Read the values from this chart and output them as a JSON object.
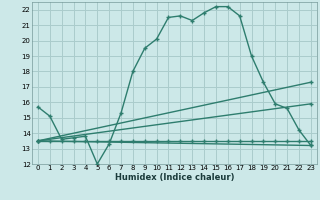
{
  "xlabel": "Humidex (Indice chaleur)",
  "bg_color": "#cce8e8",
  "grid_color": "#aacccc",
  "line_color": "#2e7d6e",
  "xlim": [
    -0.5,
    23.5
  ],
  "ylim": [
    12,
    22.5
  ],
  "yticks": [
    12,
    13,
    14,
    15,
    16,
    17,
    18,
    19,
    20,
    21,
    22
  ],
  "xticks": [
    0,
    1,
    2,
    3,
    4,
    5,
    6,
    7,
    8,
    9,
    10,
    11,
    12,
    13,
    14,
    15,
    16,
    17,
    18,
    19,
    20,
    21,
    22,
    23
  ],
  "line1_x": [
    0,
    1,
    2,
    3,
    4,
    5,
    6,
    7,
    8,
    9,
    10,
    11,
    12,
    13,
    14,
    15,
    16,
    17,
    18,
    19,
    20,
    21,
    22,
    23
  ],
  "line1_y": [
    15.7,
    15.1,
    13.6,
    13.7,
    13.8,
    12.0,
    13.3,
    15.3,
    18.0,
    19.5,
    20.1,
    21.5,
    21.6,
    21.3,
    21.8,
    22.2,
    22.2,
    21.6,
    19.0,
    17.3,
    15.9,
    15.6,
    14.2,
    13.2
  ],
  "line2_x": [
    0,
    1,
    2,
    3,
    4,
    5,
    6,
    7,
    8,
    9,
    10,
    11,
    12,
    13,
    14,
    15,
    16,
    17,
    18,
    19,
    20,
    21,
    22,
    23
  ],
  "line2_y": [
    13.5,
    13.5,
    13.5,
    13.5,
    13.5,
    13.5,
    13.5,
    13.5,
    13.5,
    13.5,
    13.5,
    13.5,
    13.5,
    13.5,
    13.5,
    13.5,
    13.5,
    13.5,
    13.5,
    13.5,
    13.5,
    13.5,
    13.5,
    13.5
  ],
  "line3_x": [
    0,
    23
  ],
  "line3_y": [
    13.5,
    17.3
  ],
  "line4_x": [
    0,
    23
  ],
  "line4_y": [
    13.5,
    13.2
  ],
  "line5_x": [
    0,
    23
  ],
  "line5_y": [
    13.5,
    15.9
  ]
}
